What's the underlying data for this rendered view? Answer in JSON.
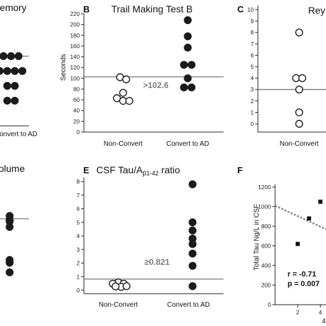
{
  "panels": {
    "A": {
      "label": "",
      "title": "Memory",
      "category": "Convert to AD"
    },
    "B": {
      "label": "B",
      "title": "Trail Making Test B",
      "ylabel": "Seconds",
      "threshold_label": ">102.6"
    },
    "C": {
      "label": "C",
      "title": "Rey",
      "category": "Non-Convert"
    },
    "D": {
      "label": "",
      "title": "olume",
      "category": ""
    },
    "E": {
      "label": "E",
      "title_prefix": "CSF Tau/A",
      "title_sub": "β1-42",
      "title_suffix": " ratio",
      "threshold_label": "≥0.821"
    },
    "F": {
      "label": "F",
      "ylabel": "Total Tau Ng/L in CSF",
      "r_text": "r = -0.71",
      "p_text": "p = 0.007",
      "xlabel_partial": "4"
    }
  },
  "chart_data": [
    {
      "panel": "A",
      "type": "scatter",
      "title": "Memory",
      "categories": [
        "Convert to AD"
      ],
      "series": [
        {
          "values": [
            2,
            2,
            2,
            1,
            1,
            1,
            1,
            0,
            0,
            -1,
            -1
          ]
        }
      ],
      "threshold": 2,
      "ylim": [
        -2,
        3
      ],
      "marker": "filled"
    },
    {
      "panel": "B",
      "type": "scatter",
      "title": "Trail Making Test B",
      "ylabel": "Seconds",
      "categories": [
        "Non-Convert",
        "Convert to AD"
      ],
      "yticks": [
        0,
        20,
        40,
        60,
        80,
        100,
        120,
        140,
        160,
        180,
        200,
        220
      ],
      "ylim": [
        0,
        220
      ],
      "series": [
        {
          "category": "Non-Convert",
          "marker": "open",
          "values": [
            102,
            98,
            73,
            63,
            58,
            58
          ]
        },
        {
          "category": "Convert to AD",
          "marker": "filled",
          "values": [
            208,
            178,
            157,
            125,
            125,
            100,
            83,
            83
          ]
        }
      ],
      "threshold": 102.6,
      "threshold_label": ">102.6"
    },
    {
      "panel": "C",
      "type": "scatter",
      "title": "Rey",
      "categories": [
        "Non-Convert"
      ],
      "yticks": [
        0,
        1,
        2,
        3,
        4,
        5,
        6,
        7,
        8,
        9,
        10
      ],
      "ylim": [
        0,
        10
      ],
      "series": [
        {
          "category": "Non-Convert",
          "marker": "open",
          "values": [
            8,
            4,
            4,
            3,
            1,
            0
          ]
        }
      ],
      "threshold": 3
    },
    {
      "panel": "D",
      "type": "scatter",
      "title": "olume",
      "series": [
        {
          "marker": "filled",
          "values": [
            5.3,
            5.0,
            5.0,
            4.9,
            4.5,
            2.1,
            1.9,
            1.2
          ]
        }
      ],
      "threshold": 5.1,
      "ylim": [
        0,
        8
      ]
    },
    {
      "panel": "E",
      "type": "scatter",
      "title": "CSF Tau/Aβ1-42 ratio",
      "categories": [
        "Non-Convert",
        "Convert to AD"
      ],
      "yticks": [
        0,
        1,
        2,
        3,
        4,
        5,
        6,
        7,
        8
      ],
      "ylim": [
        0,
        8
      ],
      "series": [
        {
          "category": "Non-Convert",
          "marker": "open",
          "values": [
            0.58,
            0.48,
            0.48,
            0.25,
            0.28,
            0.3
          ]
        },
        {
          "category": "Convert to AD",
          "marker": "filled",
          "values": [
            7.8,
            5.0,
            4.4,
            3.8,
            3.4,
            2.7,
            1.8,
            0.3
          ]
        }
      ],
      "threshold": 0.821,
      "threshold_label": "≥0.821"
    },
    {
      "panel": "F",
      "type": "scatter",
      "ylabel": "Total Tau Ng/L in CSF",
      "yticks": [
        0,
        200,
        400,
        600,
        800,
        1000,
        1200
      ],
      "ylim": [
        0,
        1200
      ],
      "xticks": [
        2,
        4
      ],
      "xlim": [
        0,
        4.5
      ],
      "points": [
        {
          "x": 2,
          "y": 620
        },
        {
          "x": 3,
          "y": 880
        },
        {
          "x": 4,
          "y": 1050
        }
      ],
      "regression": [
        {
          "x": 0,
          "y": 1010
        },
        {
          "x": 4.5,
          "y": 770
        }
      ],
      "annotations": [
        "r = -0.71",
        "p = 0.007"
      ]
    }
  ]
}
